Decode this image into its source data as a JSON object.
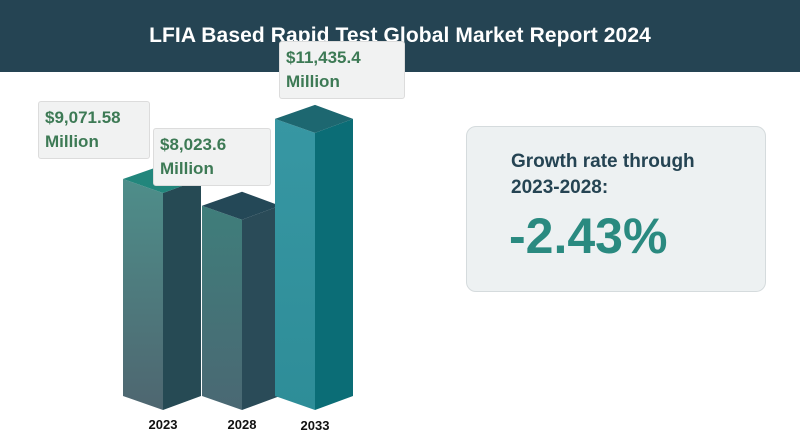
{
  "header": {
    "title": "LFIA Based Rapid Test Global Market Report 2024"
  },
  "growth": {
    "label_line1": "Growth rate through",
    "label_line2": "2023-2028:",
    "value": "-2.43%"
  },
  "chart_data": {
    "type": "bar",
    "title": "LFIA Based Rapid Test Global Market Report 2024",
    "categories": [
      "2023",
      "2028",
      "2033"
    ],
    "values": [
      9071.58,
      8023.6,
      11435.4
    ],
    "value_labels": [
      "$9,071.58 Million",
      "$8,023.6 Million",
      "$11,435.4 Million"
    ],
    "unit": "Million",
    "ylim": [
      0,
      13000
    ],
    "grid": false,
    "colors": {
      "2023": {
        "top": "#22867c",
        "front_top": "#4e8e8a",
        "front_bottom": "#4e6670",
        "side": "#264a54"
      },
      "2028": {
        "top": "#244857",
        "front_top": "#3f7e7b",
        "front_bottom": "#4a6873",
        "side": "#2a4b58"
      },
      "2033": {
        "top": "#1d6770",
        "front_top": "#3797a3",
        "front_bottom": "#2e8d98",
        "side": "#0b6d76"
      }
    }
  }
}
